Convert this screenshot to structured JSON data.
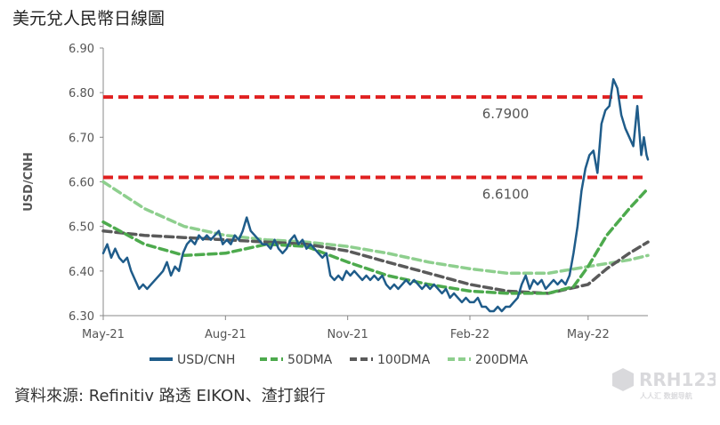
{
  "page_title": "美元兌人民幣日線圖",
  "source_note": "資料來源: Refinitiv 路透 EIKON、渣打銀行",
  "watermark": {
    "text": "RRH123",
    "subtext": "人人汇 数据导航"
  },
  "chart_data": {
    "type": "line",
    "title": "",
    "ylabel": "USD/CNH",
    "xlabel": "",
    "ylim": [
      6.3,
      6.9
    ],
    "yticks": [
      "6.30",
      "6.40",
      "6.50",
      "6.60",
      "6.70",
      "6.80",
      "6.90"
    ],
    "xlim": [
      "2021-05-01",
      "2022-06-15"
    ],
    "xticks": [
      {
        "date": "2021-05-01",
        "label": "May-21"
      },
      {
        "date": "2021-08-01",
        "label": "Aug-21"
      },
      {
        "date": "2021-11-01",
        "label": "Nov-21"
      },
      {
        "date": "2022-02-01",
        "label": "Feb-22"
      },
      {
        "date": "2022-05-01",
        "label": "May-22"
      }
    ],
    "grid": false,
    "legend_position": "bottom",
    "reference_lines": [
      {
        "value": 6.79,
        "label": "6.7900",
        "color": "#e02020"
      },
      {
        "value": 6.61,
        "label": "6.6100",
        "color": "#e02020"
      }
    ],
    "series": [
      {
        "name": "USD/CNH",
        "color": "#1f5c8a",
        "style": "solid",
        "points": [
          [
            "2021-05-01",
            6.44
          ],
          [
            "2021-05-04",
            6.46
          ],
          [
            "2021-05-07",
            6.43
          ],
          [
            "2021-05-10",
            6.45
          ],
          [
            "2021-05-13",
            6.43
          ],
          [
            "2021-05-16",
            6.42
          ],
          [
            "2021-05-19",
            6.43
          ],
          [
            "2021-05-22",
            6.4
          ],
          [
            "2021-05-25",
            6.38
          ],
          [
            "2021-05-28",
            6.36
          ],
          [
            "2021-05-31",
            6.37
          ],
          [
            "2021-06-03",
            6.36
          ],
          [
            "2021-06-06",
            6.37
          ],
          [
            "2021-06-09",
            6.38
          ],
          [
            "2021-06-12",
            6.39
          ],
          [
            "2021-06-15",
            6.4
          ],
          [
            "2021-06-18",
            6.42
          ],
          [
            "2021-06-21",
            6.39
          ],
          [
            "2021-06-24",
            6.41
          ],
          [
            "2021-06-27",
            6.4
          ],
          [
            "2021-06-30",
            6.44
          ],
          [
            "2021-07-03",
            6.46
          ],
          [
            "2021-07-06",
            6.47
          ],
          [
            "2021-07-09",
            6.46
          ],
          [
            "2021-07-12",
            6.48
          ],
          [
            "2021-07-15",
            6.47
          ],
          [
            "2021-07-18",
            6.48
          ],
          [
            "2021-07-21",
            6.47
          ],
          [
            "2021-07-24",
            6.48
          ],
          [
            "2021-07-27",
            6.49
          ],
          [
            "2021-07-30",
            6.46
          ],
          [
            "2021-08-02",
            6.47
          ],
          [
            "2021-08-05",
            6.46
          ],
          [
            "2021-08-08",
            6.48
          ],
          [
            "2021-08-11",
            6.47
          ],
          [
            "2021-08-14",
            6.49
          ],
          [
            "2021-08-17",
            6.52
          ],
          [
            "2021-08-20",
            6.49
          ],
          [
            "2021-08-23",
            6.48
          ],
          [
            "2021-08-26",
            6.47
          ],
          [
            "2021-08-29",
            6.46
          ],
          [
            "2021-09-01",
            6.46
          ],
          [
            "2021-09-04",
            6.45
          ],
          [
            "2021-09-07",
            6.47
          ],
          [
            "2021-09-10",
            6.45
          ],
          [
            "2021-09-13",
            6.44
          ],
          [
            "2021-09-16",
            6.45
          ],
          [
            "2021-09-19",
            6.47
          ],
          [
            "2021-09-22",
            6.48
          ],
          [
            "2021-09-25",
            6.46
          ],
          [
            "2021-09-28",
            6.47
          ],
          [
            "2021-10-01",
            6.45
          ],
          [
            "2021-10-04",
            6.46
          ],
          [
            "2021-10-07",
            6.45
          ],
          [
            "2021-10-10",
            6.44
          ],
          [
            "2021-10-13",
            6.43
          ],
          [
            "2021-10-16",
            6.44
          ],
          [
            "2021-10-19",
            6.39
          ],
          [
            "2021-10-22",
            6.38
          ],
          [
            "2021-10-25",
            6.39
          ],
          [
            "2021-10-28",
            6.38
          ],
          [
            "2021-10-31",
            6.4
          ],
          [
            "2021-11-03",
            6.39
          ],
          [
            "2021-11-06",
            6.4
          ],
          [
            "2021-11-09",
            6.39
          ],
          [
            "2021-11-12",
            6.38
          ],
          [
            "2021-11-15",
            6.39
          ],
          [
            "2021-11-18",
            6.38
          ],
          [
            "2021-11-21",
            6.39
          ],
          [
            "2021-11-24",
            6.38
          ],
          [
            "2021-11-27",
            6.39
          ],
          [
            "2021-11-30",
            6.37
          ],
          [
            "2021-12-03",
            6.36
          ],
          [
            "2021-12-06",
            6.37
          ],
          [
            "2021-12-09",
            6.36
          ],
          [
            "2021-12-12",
            6.37
          ],
          [
            "2021-12-15",
            6.38
          ],
          [
            "2021-12-18",
            6.37
          ],
          [
            "2021-12-21",
            6.38
          ],
          [
            "2021-12-24",
            6.37
          ],
          [
            "2021-12-27",
            6.36
          ],
          [
            "2021-12-30",
            6.37
          ],
          [
            "2022-01-02",
            6.36
          ],
          [
            "2022-01-05",
            6.37
          ],
          [
            "2022-01-08",
            6.36
          ],
          [
            "2022-01-11",
            6.35
          ],
          [
            "2022-01-14",
            6.36
          ],
          [
            "2022-01-17",
            6.34
          ],
          [
            "2022-01-20",
            6.35
          ],
          [
            "2022-01-23",
            6.34
          ],
          [
            "2022-01-26",
            6.33
          ],
          [
            "2022-01-29",
            6.34
          ],
          [
            "2022-02-01",
            6.33
          ],
          [
            "2022-02-04",
            6.33
          ],
          [
            "2022-02-07",
            6.34
          ],
          [
            "2022-02-10",
            6.32
          ],
          [
            "2022-02-13",
            6.32
          ],
          [
            "2022-02-16",
            6.31
          ],
          [
            "2022-02-19",
            6.31
          ],
          [
            "2022-02-22",
            6.32
          ],
          [
            "2022-02-25",
            6.31
          ],
          [
            "2022-02-28",
            6.32
          ],
          [
            "2022-03-03",
            6.32
          ],
          [
            "2022-03-06",
            6.33
          ],
          [
            "2022-03-09",
            6.34
          ],
          [
            "2022-03-12",
            6.37
          ],
          [
            "2022-03-15",
            6.39
          ],
          [
            "2022-03-18",
            6.36
          ],
          [
            "2022-03-21",
            6.38
          ],
          [
            "2022-03-24",
            6.37
          ],
          [
            "2022-03-27",
            6.38
          ],
          [
            "2022-03-30",
            6.36
          ],
          [
            "2022-04-02",
            6.37
          ],
          [
            "2022-04-05",
            6.38
          ],
          [
            "2022-04-08",
            6.37
          ],
          [
            "2022-04-11",
            6.38
          ],
          [
            "2022-04-14",
            6.37
          ],
          [
            "2022-04-17",
            6.39
          ],
          [
            "2022-04-20",
            6.44
          ],
          [
            "2022-04-23",
            6.5
          ],
          [
            "2022-04-26",
            6.58
          ],
          [
            "2022-04-29",
            6.63
          ],
          [
            "2022-05-02",
            6.66
          ],
          [
            "2022-05-05",
            6.67
          ],
          [
            "2022-05-08",
            6.62
          ],
          [
            "2022-05-11",
            6.73
          ],
          [
            "2022-05-14",
            6.76
          ],
          [
            "2022-05-17",
            6.77
          ],
          [
            "2022-05-20",
            6.83
          ],
          [
            "2022-05-23",
            6.81
          ],
          [
            "2022-05-26",
            6.75
          ],
          [
            "2022-05-29",
            6.72
          ],
          [
            "2022-06-01",
            6.7
          ],
          [
            "2022-06-04",
            6.68
          ],
          [
            "2022-06-07",
            6.77
          ],
          [
            "2022-06-10",
            6.66
          ],
          [
            "2022-06-12",
            6.7
          ],
          [
            "2022-06-14",
            6.66
          ],
          [
            "2022-06-15",
            6.65
          ]
        ]
      },
      {
        "name": "50DMA",
        "color": "#4daa4d",
        "style": "dashed",
        "points": [
          [
            "2021-05-01",
            6.51
          ],
          [
            "2021-06-01",
            6.46
          ],
          [
            "2021-07-01",
            6.435
          ],
          [
            "2021-08-01",
            6.44
          ],
          [
            "2021-09-01",
            6.46
          ],
          [
            "2021-10-01",
            6.455
          ],
          [
            "2021-11-01",
            6.42
          ],
          [
            "2021-12-01",
            6.39
          ],
          [
            "2022-01-01",
            6.37
          ],
          [
            "2022-02-01",
            6.355
          ],
          [
            "2022-03-01",
            6.35
          ],
          [
            "2022-04-01",
            6.35
          ],
          [
            "2022-04-20",
            6.365
          ],
          [
            "2022-05-01",
            6.41
          ],
          [
            "2022-05-15",
            6.48
          ],
          [
            "2022-06-01",
            6.54
          ],
          [
            "2022-06-15",
            6.585
          ]
        ]
      },
      {
        "name": "100DMA",
        "color": "#5a5a5a",
        "style": "dashed",
        "points": [
          [
            "2021-05-01",
            6.49
          ],
          [
            "2021-06-01",
            6.48
          ],
          [
            "2021-07-01",
            6.475
          ],
          [
            "2021-08-01",
            6.47
          ],
          [
            "2021-09-01",
            6.465
          ],
          [
            "2021-10-01",
            6.46
          ],
          [
            "2021-11-01",
            6.445
          ],
          [
            "2021-12-01",
            6.42
          ],
          [
            "2022-01-01",
            6.395
          ],
          [
            "2022-02-01",
            6.37
          ],
          [
            "2022-03-01",
            6.355
          ],
          [
            "2022-04-01",
            6.35
          ],
          [
            "2022-05-01",
            6.37
          ],
          [
            "2022-05-15",
            6.405
          ],
          [
            "2022-06-01",
            6.44
          ],
          [
            "2022-06-15",
            6.465
          ]
        ]
      },
      {
        "name": "200DMA",
        "color": "#8ecf8e",
        "style": "dashed",
        "points": [
          [
            "2021-05-01",
            6.6
          ],
          [
            "2021-06-01",
            6.54
          ],
          [
            "2021-07-01",
            6.5
          ],
          [
            "2021-08-01",
            6.48
          ],
          [
            "2021-09-01",
            6.47
          ],
          [
            "2021-10-01",
            6.465
          ],
          [
            "2021-11-01",
            6.455
          ],
          [
            "2021-12-01",
            6.44
          ],
          [
            "2022-01-01",
            6.42
          ],
          [
            "2022-02-01",
            6.405
          ],
          [
            "2022-03-01",
            6.395
          ],
          [
            "2022-04-01",
            6.395
          ],
          [
            "2022-05-01",
            6.41
          ],
          [
            "2022-06-01",
            6.425
          ],
          [
            "2022-06-15",
            6.435
          ]
        ]
      }
    ]
  }
}
